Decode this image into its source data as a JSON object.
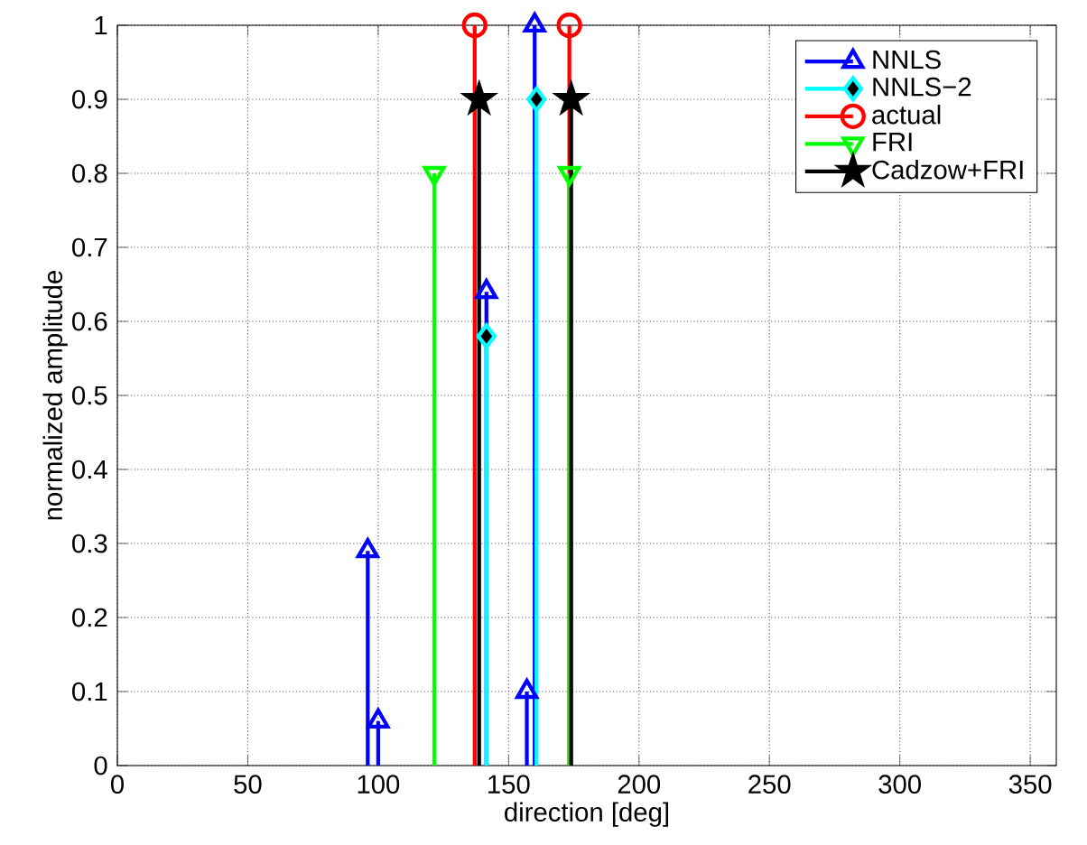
{
  "chart_data": {
    "type": "lollipop",
    "xlabel": "direction [deg]",
    "ylabel": "normalized amplitude",
    "xlim": [
      0,
      360
    ],
    "ylim": [
      0,
      1
    ],
    "xticks": [
      0,
      50,
      100,
      150,
      200,
      250,
      300,
      350
    ],
    "yticks": [
      0,
      0.1,
      0.2,
      0.3,
      0.4,
      0.5,
      0.6,
      0.7,
      0.8,
      0.9,
      1
    ],
    "grid": true,
    "legend": "top right",
    "series": [
      {
        "name": "NNLS",
        "color": "#0000ff",
        "marker": "triangle",
        "x": [
          96,
          100,
          141.5,
          157,
          160
        ],
        "values": [
          0.29,
          0.06,
          0.64,
          0.1,
          1.0
        ]
      },
      {
        "name": "NNLS−2",
        "color": "#00ffff",
        "marker": "diamond",
        "x": [
          141.5,
          160.7
        ],
        "values": [
          0.58,
          0.9
        ]
      },
      {
        "name": "actual",
        "color": "#ff0000",
        "marker": "circle",
        "x": [
          137,
          173.3
        ],
        "values": [
          1.0,
          1.0
        ]
      },
      {
        "name": "FRI",
        "color": "#00ff00",
        "marker": "triangle down",
        "x": [
          121.5,
          173.3
        ],
        "values": [
          0.8,
          0.8
        ]
      },
      {
        "name": "Cadzow+FRI",
        "color": "#000000",
        "marker": "star",
        "x": [
          138.7,
          174
        ],
        "values": [
          0.9,
          0.9
        ]
      }
    ]
  }
}
